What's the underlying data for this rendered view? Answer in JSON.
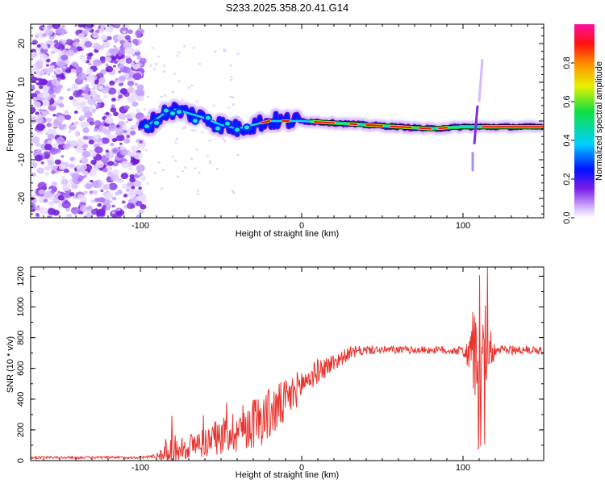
{
  "title": "S233.2025.358.20.41.G14",
  "chart_data": [
    {
      "type": "heatmap",
      "xlabel": "Height of straight line (km)",
      "ylabel": "Frequency (Hz)",
      "xlim": [
        -168,
        150
      ],
      "ylim": [
        -25,
        25
      ],
      "x_ticks": [
        -100,
        0,
        100
      ],
      "y_ticks": [
        20,
        10,
        0,
        -10,
        -20
      ],
      "colorbar": {
        "label": "Normalized spectral amplitude",
        "range": [
          0,
          1
        ],
        "ticks": [
          0.0,
          0.2,
          0.4,
          0.6,
          0.8
        ]
      },
      "ridge": {
        "description_points": [
          {
            "x": -95,
            "y": -1
          },
          {
            "x": -85,
            "y": 2
          },
          {
            "x": -78,
            "y": 3
          },
          {
            "x": -70,
            "y": 2
          },
          {
            "x": -62,
            "y": 1
          },
          {
            "x": -50,
            "y": -1
          },
          {
            "x": -40,
            "y": -2
          },
          {
            "x": -30,
            "y": -1
          },
          {
            "x": -20,
            "y": 0
          },
          {
            "x": -10,
            "y": 0
          },
          {
            "x": 0,
            "y": 0
          },
          {
            "x": 20,
            "y": -0.5
          },
          {
            "x": 40,
            "y": -1
          },
          {
            "x": 60,
            "y": -1.5
          },
          {
            "x": 80,
            "y": -2
          },
          {
            "x": 100,
            "y": -1.5
          },
          {
            "x": 150,
            "y": -1.5
          }
        ]
      }
    },
    {
      "type": "line",
      "xlabel": "Height of straight line (km)",
      "ylabel": "SNR (10 * v/v)",
      "xlim": [
        -168,
        150
      ],
      "ylim": [
        0,
        1260
      ],
      "x_ticks": [
        -100,
        0,
        100
      ],
      "y_ticks": [
        0,
        200,
        400,
        600,
        800,
        1000,
        1200
      ],
      "series": [
        {
          "name": "SNR",
          "color": "#e8332e",
          "envelope": {
            "x": [
              -168,
              -100,
              -90,
              -82,
              -75,
              -60,
              -50,
              -40,
              -30,
              -20,
              -10,
              0,
              10,
              20,
              30,
              40,
              60,
              80,
              100,
              105,
              110,
              115,
              120,
              150
            ],
            "base": [
              20,
              20,
              30,
              60,
              80,
              120,
              160,
              200,
              250,
              300,
              380,
              500,
              580,
              640,
              700,
              720,
              720,
              720,
              715,
              700,
              720,
              720,
              720,
              720
            ],
            "amp": [
              8,
              8,
              15,
              120,
              80,
              100,
              120,
              150,
              170,
              180,
              150,
              100,
              80,
              60,
              40,
              30,
              25,
              25,
              30,
              200,
              500,
              250,
              30,
              30
            ]
          }
        }
      ]
    }
  ]
}
